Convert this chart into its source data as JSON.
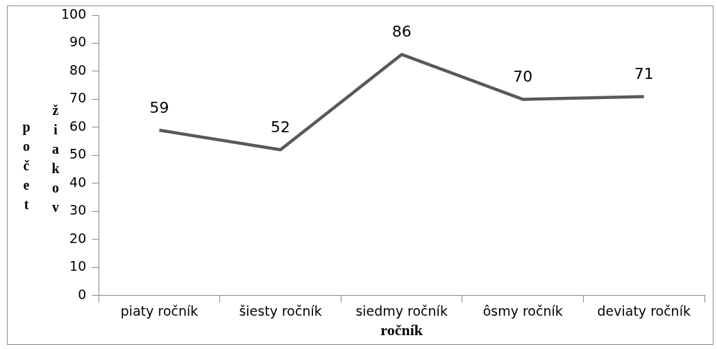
{
  "chart_data": {
    "type": "line",
    "xlabel": "ročník",
    "ylabel": "počet žiakov",
    "categories": [
      "piaty ročník",
      "šiesty ročník",
      "siedmy ročník",
      "ôsmy ročník",
      "deviaty ročník"
    ],
    "series": [
      {
        "color": "#595959",
        "values": [
          59,
          52,
          86,
          70,
          71
        ]
      }
    ],
    "ylim": [
      0,
      100
    ],
    "yticks": [
      0,
      10,
      20,
      30,
      40,
      50,
      60,
      70,
      80,
      90,
      100
    ],
    "grid": false,
    "legend": false,
    "marker": "none",
    "data_labels": true
  }
}
